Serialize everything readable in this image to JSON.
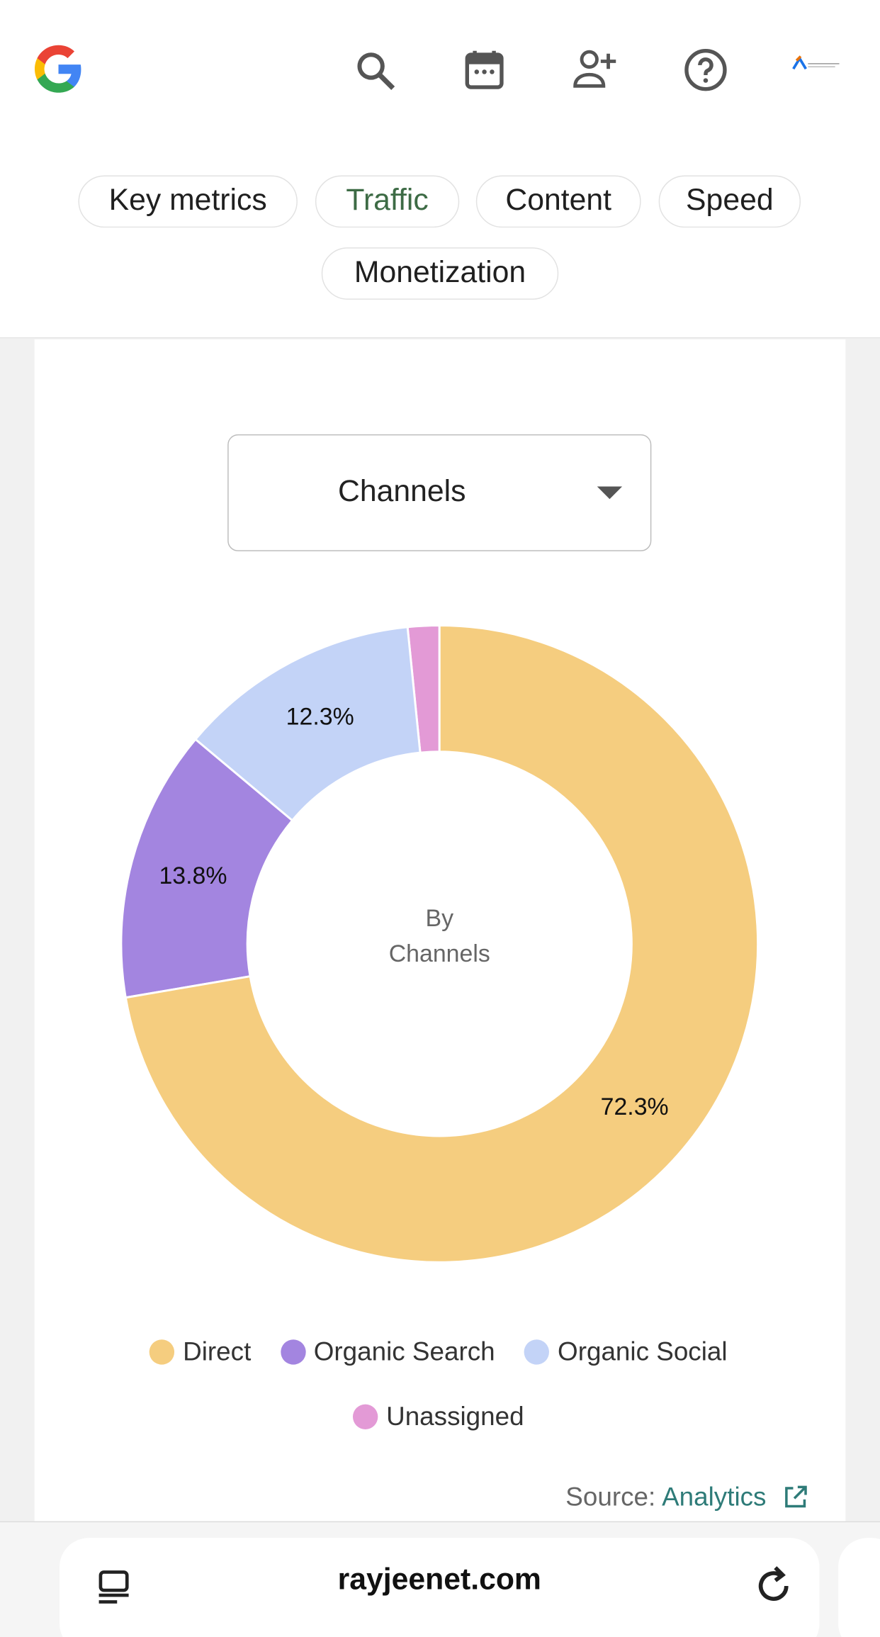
{
  "tabs": [
    "Key metrics",
    "Traffic",
    "Content",
    "Speed",
    "Monetization"
  ],
  "dropdown": "Channels",
  "chart_data": {
    "type": "pie",
    "center_label": [
      "By",
      "Channels"
    ],
    "categories": [
      "Direct",
      "Organic Search",
      "Organic Social",
      "Unassigned"
    ],
    "values": [
      72.3,
      13.8,
      12.3,
      1.6
    ],
    "value_labels": [
      "72.3%",
      "13.8%",
      "12.3%",
      null
    ],
    "colors": [
      "#f5cd7f",
      "#a385e0",
      "#c3d3f7",
      "#e39ad6"
    ]
  },
  "source": {
    "label": "Source:",
    "link": "Analytics"
  },
  "address_bar": "rayjeenet.com"
}
